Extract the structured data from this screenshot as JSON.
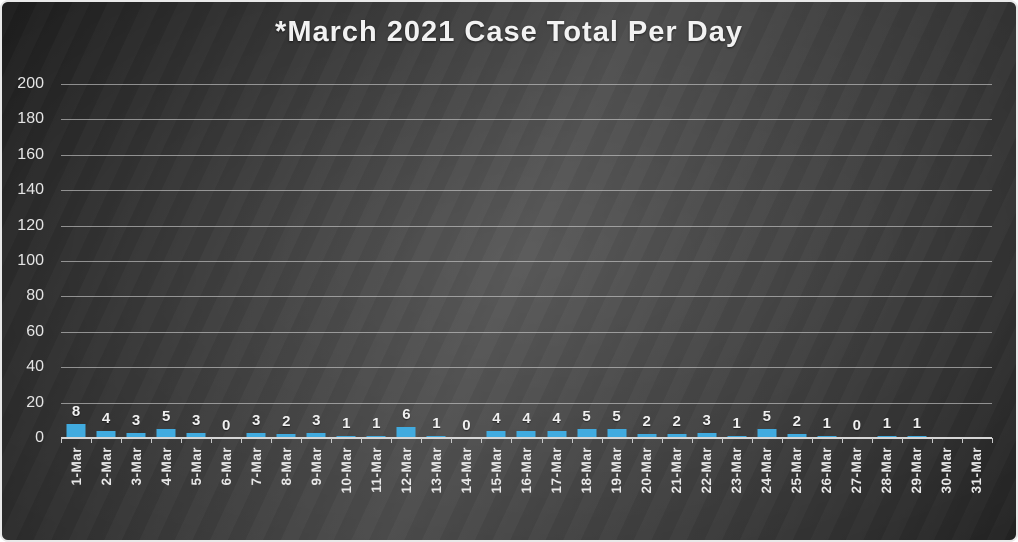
{
  "chart_data": {
    "type": "bar",
    "title": "*March 2021 Case Total Per Day",
    "categories": [
      "1-Mar",
      "2-Mar",
      "3-Mar",
      "4-Mar",
      "5-Mar",
      "6-Mar",
      "7-Mar",
      "8-Mar",
      "9-Mar",
      "10-Mar",
      "11-Mar",
      "12-Mar",
      "13-Mar",
      "14-Mar",
      "15-Mar",
      "16-Mar",
      "17-Mar",
      "18-Mar",
      "19-Mar",
      "20-Mar",
      "21-Mar",
      "22-Mar",
      "23-Mar",
      "24-Mar",
      "25-Mar",
      "26-Mar",
      "27-Mar",
      "28-Mar",
      "29-Mar",
      "30-Mar",
      "31-Mar"
    ],
    "values": [
      8,
      4,
      3,
      5,
      3,
      0,
      3,
      2,
      3,
      1,
      1,
      6,
      1,
      0,
      4,
      4,
      4,
      5,
      5,
      2,
      2,
      3,
      1,
      5,
      2,
      1,
      0,
      1,
      1,
      null,
      null
    ],
    "xlabel": "",
    "ylabel": "",
    "ylim": [
      0,
      200
    ],
    "yticks": [
      0,
      20,
      40,
      60,
      80,
      100,
      120,
      140,
      160,
      180,
      200
    ],
    "grid": true,
    "legend": "none",
    "data_labels": true,
    "colors": {
      "bar_fill": "#41abdf",
      "background_dark": "#1c1c1c",
      "background_light": "#474747",
      "gridline": "#cdcdcd",
      "axis_line": "#d6d6d6",
      "text": "#f2f2f2"
    }
  }
}
